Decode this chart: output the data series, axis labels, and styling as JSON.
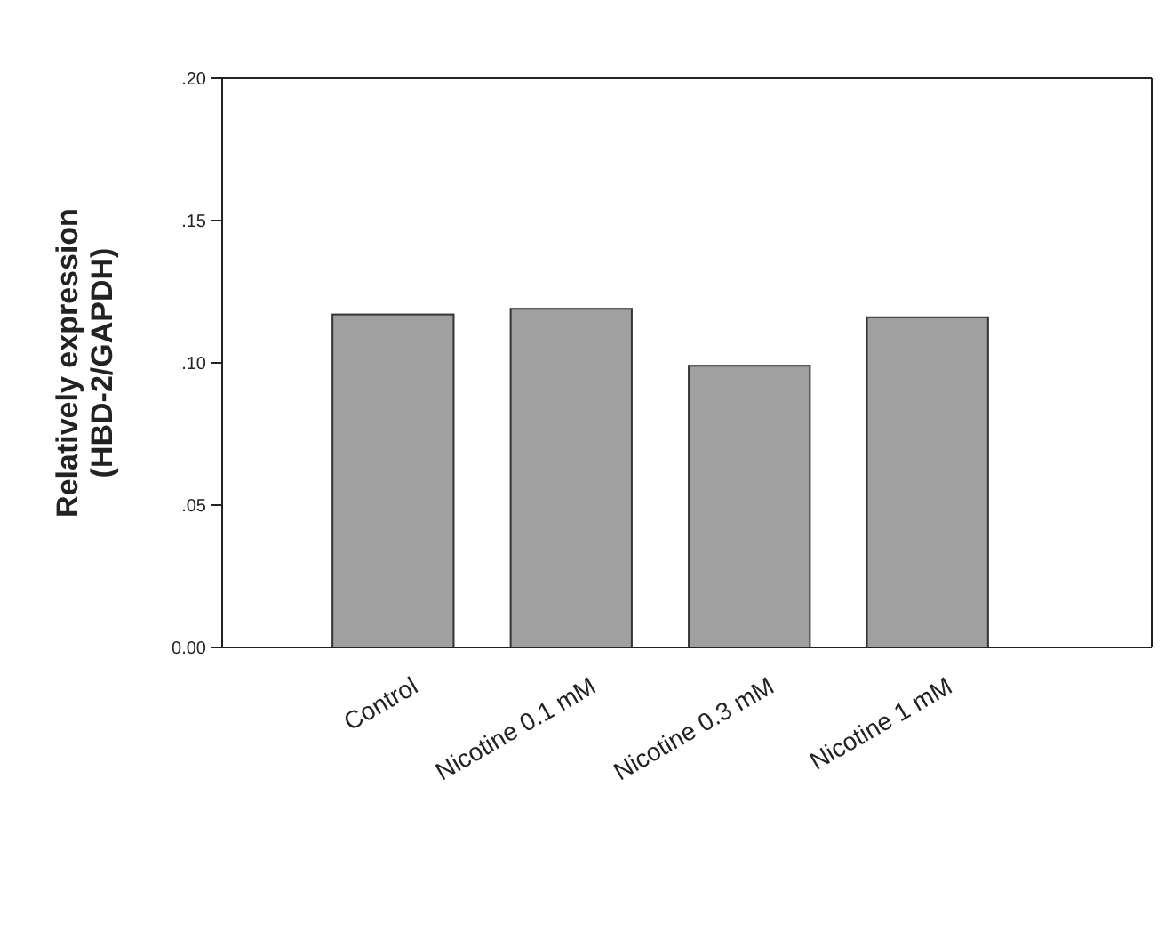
{
  "chart_data": {
    "type": "bar",
    "ylabel": "Relatively expression\n(HBD-2/GAPDH)",
    "categories": [
      "Control",
      "Nicotine 0.1 mM",
      "Nicotine 0.3 mM",
      "Nicotine 1 mM"
    ],
    "values": [
      0.117,
      0.119,
      0.099,
      0.116
    ],
    "color": "#a0a0a0",
    "ylim": [
      0,
      0.2
    ],
    "yticks": [
      {
        "value": 0,
        "label": "0.00"
      },
      {
        "value": 0.05,
        "label": ".05"
      },
      {
        "value": 0.1,
        "label": ".10"
      },
      {
        "value": 0.15,
        "label": ".15"
      },
      {
        "value": 0.2,
        "label": ".20"
      }
    ],
    "grid": false
  }
}
